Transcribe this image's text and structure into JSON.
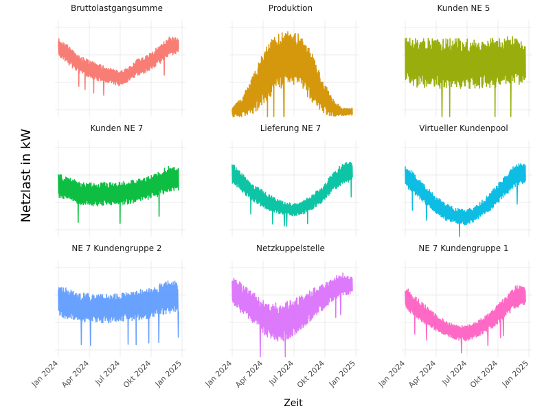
{
  "chart_data": {
    "type": "line",
    "layout": "facet-grid-3x3",
    "ylabel": "Netzlast in kW",
    "xlabel": "Zeit",
    "x_ticks": [
      "Jan 2024",
      "Apr 2024",
      "Jul 2024",
      "Okt 2024",
      "Jan 2025"
    ],
    "x_range": [
      "2024-01-01",
      "2025-01-01"
    ],
    "grid": true,
    "legend": "none",
    "x": [
      "2024-01",
      "2024-02",
      "2024-03",
      "2024-04",
      "2024-05",
      "2024-06",
      "2024-07",
      "2024-08",
      "2024-09",
      "2024-10",
      "2024-11",
      "2024-12",
      "2025-01"
    ],
    "series": [
      {
        "name": "Bruttolastgangsumme",
        "color": "#f8766d",
        "center": [
          0.73,
          0.64,
          0.55,
          0.5,
          0.46,
          0.43,
          0.4,
          0.44,
          0.52,
          0.56,
          0.64,
          0.73,
          0.74
        ],
        "spread": [
          0.1,
          0.1,
          0.09,
          0.09,
          0.09,
          0.08,
          0.08,
          0.08,
          0.09,
          0.09,
          0.1,
          0.1,
          0.08
        ]
      },
      {
        "name": "Produktion",
        "color": "#d39200",
        "center": [
          0.05,
          0.1,
          0.22,
          0.38,
          0.52,
          0.6,
          0.62,
          0.56,
          0.4,
          0.22,
          0.1,
          0.05,
          0.05
        ],
        "spread": [
          0.05,
          0.1,
          0.2,
          0.28,
          0.3,
          0.3,
          0.28,
          0.28,
          0.26,
          0.18,
          0.1,
          0.04,
          0.04
        ]
      },
      {
        "name": "Kunden NE 5",
        "color": "#93aa00",
        "center": [
          0.58,
          0.56,
          0.56,
          0.55,
          0.55,
          0.56,
          0.55,
          0.55,
          0.56,
          0.56,
          0.57,
          0.58,
          0.58
        ],
        "spread": [
          0.24,
          0.26,
          0.26,
          0.26,
          0.26,
          0.26,
          0.26,
          0.26,
          0.26,
          0.26,
          0.26,
          0.26,
          0.22
        ]
      },
      {
        "name": "Kunden NE 7",
        "color": "#00ba38",
        "center": [
          0.53,
          0.5,
          0.46,
          0.44,
          0.44,
          0.45,
          0.45,
          0.46,
          0.48,
          0.51,
          0.55,
          0.6,
          0.6
        ],
        "spread": [
          0.13,
          0.12,
          0.12,
          0.12,
          0.12,
          0.12,
          0.12,
          0.12,
          0.12,
          0.12,
          0.13,
          0.14,
          0.12
        ]
      },
      {
        "name": "Lieferung NE 7",
        "color": "#00c19f",
        "center": [
          0.66,
          0.56,
          0.46,
          0.4,
          0.34,
          0.3,
          0.28,
          0.3,
          0.36,
          0.44,
          0.56,
          0.66,
          0.68
        ],
        "spread": [
          0.11,
          0.1,
          0.09,
          0.09,
          0.08,
          0.07,
          0.07,
          0.07,
          0.08,
          0.09,
          0.1,
          0.11,
          0.1
        ]
      },
      {
        "name": "Virtueller Kundenpool",
        "color": "#00b9e3",
        "center": [
          0.64,
          0.54,
          0.44,
          0.34,
          0.26,
          0.22,
          0.2,
          0.24,
          0.32,
          0.42,
          0.54,
          0.64,
          0.66
        ],
        "spread": [
          0.12,
          0.11,
          0.1,
          0.09,
          0.09,
          0.08,
          0.08,
          0.08,
          0.09,
          0.1,
          0.11,
          0.12,
          0.1
        ]
      },
      {
        "name": "NE 7 Kundengruppe 2",
        "color": "#619cff",
        "center": [
          0.57,
          0.55,
          0.52,
          0.51,
          0.5,
          0.5,
          0.51,
          0.52,
          0.54,
          0.56,
          0.59,
          0.63,
          0.62
        ],
        "spread": [
          0.18,
          0.16,
          0.15,
          0.15,
          0.15,
          0.15,
          0.15,
          0.15,
          0.16,
          0.16,
          0.17,
          0.18,
          0.16
        ]
      },
      {
        "name": "Netzkuppelstelle",
        "color": "#db72fb",
        "center": [
          0.7,
          0.6,
          0.52,
          0.42,
          0.36,
          0.36,
          0.4,
          0.46,
          0.55,
          0.62,
          0.7,
          0.76,
          0.74
        ],
        "spread": [
          0.14,
          0.16,
          0.16,
          0.18,
          0.2,
          0.2,
          0.2,
          0.18,
          0.16,
          0.14,
          0.12,
          0.12,
          0.1
        ]
      },
      {
        "name": "NE 7 Kundengruppe 1",
        "color": "#ff61c3",
        "center": [
          0.62,
          0.52,
          0.44,
          0.36,
          0.3,
          0.26,
          0.24,
          0.28,
          0.34,
          0.42,
          0.52,
          0.62,
          0.64
        ],
        "spread": [
          0.12,
          0.11,
          0.1,
          0.09,
          0.08,
          0.08,
          0.08,
          0.08,
          0.09,
          0.1,
          0.11,
          0.12,
          0.1
        ]
      }
    ]
  }
}
